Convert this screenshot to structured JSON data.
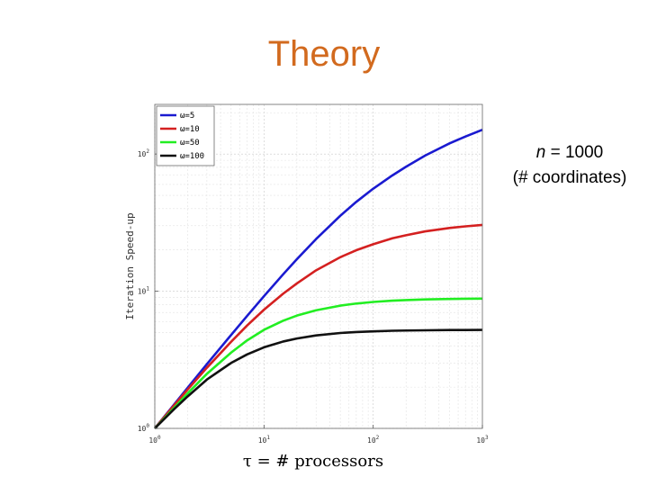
{
  "slide": {
    "title": "Theory",
    "note_var": "n",
    "note_value": " = 1000",
    "note_line2": "(# coordinates)"
  },
  "chart_data": {
    "type": "line",
    "title": "",
    "xlabel": "τ = # processors",
    "ylabel": "Iteration Speed-up",
    "x_scale": "log",
    "y_scale": "log",
    "xlim": [
      1,
      1000
    ],
    "ylim": [
      1,
      230
    ],
    "x_ticks": [
      {
        "base": "10",
        "exp": "0"
      },
      {
        "base": "10",
        "exp": "1"
      },
      {
        "base": "10",
        "exp": "2"
      },
      {
        "base": "10",
        "exp": "3"
      }
    ],
    "y_ticks": [
      {
        "base": "10",
        "exp": "0",
        "value": 1
      },
      {
        "base": "10",
        "exp": "1",
        "value": 10
      },
      {
        "base": "10",
        "exp": "2",
        "value": 100
      }
    ],
    "grid": true,
    "legend_position": "top-left",
    "series": [
      {
        "name": "ω=5",
        "color": "#1a1ad0",
        "x": [
          1,
          1.5,
          2,
          3,
          5,
          7,
          10,
          15,
          20,
          30,
          50,
          70,
          100,
          150,
          200,
          300,
          500,
          700,
          1000
        ],
        "y": [
          1,
          1.49,
          1.98,
          2.94,
          4.8,
          6.6,
          9.2,
          13.3,
          17.1,
          24.0,
          35.5,
          44.8,
          55.9,
          69.9,
          80.8,
          97.6,
          119.6,
          134.2,
          150.2
        ]
      },
      {
        "name": "ω=10",
        "color": "#d42020",
        "x": [
          1,
          1.5,
          2,
          3,
          5,
          7,
          10,
          15,
          20,
          30,
          50,
          70,
          100,
          150,
          200,
          300,
          500,
          700,
          1000
        ],
        "y": [
          1,
          1.47,
          1.92,
          2.77,
          4.28,
          5.62,
          7.33,
          9.6,
          11.4,
          14.2,
          17.7,
          19.9,
          22.0,
          24.3,
          25.6,
          27.3,
          28.9,
          29.7,
          30.4
        ]
      },
      {
        "name": "ω=50",
        "color": "#22ee22",
        "x": [
          1,
          1.5,
          2,
          3,
          5,
          7,
          10,
          15,
          20,
          30,
          50,
          70,
          100,
          150,
          200,
          300,
          500,
          700,
          1000
        ],
        "y": [
          1,
          1.41,
          1.8,
          2.5,
          3.57,
          4.38,
          5.23,
          6.1,
          6.64,
          7.26,
          7.85,
          8.13,
          8.35,
          8.53,
          8.62,
          8.71,
          8.78,
          8.81,
          8.83
        ]
      },
      {
        "name": "ω=100",
        "color": "#111111",
        "x": [
          1,
          1.5,
          2,
          3,
          5,
          7,
          10,
          15,
          20,
          30,
          50,
          70,
          100,
          150,
          200,
          300,
          500,
          700,
          1000
        ],
        "y": [
          1,
          1.38,
          1.71,
          2.27,
          3.0,
          3.46,
          3.9,
          4.3,
          4.52,
          4.76,
          4.96,
          5.04,
          5.1,
          5.15,
          5.17,
          5.19,
          5.21,
          5.21,
          5.22
        ]
      }
    ]
  }
}
